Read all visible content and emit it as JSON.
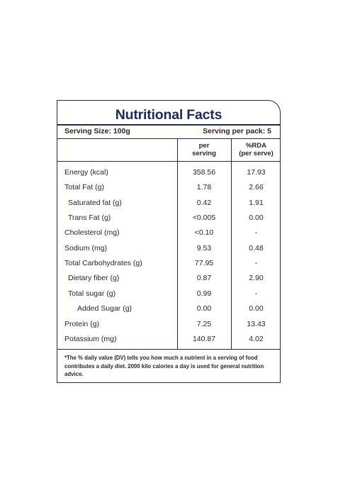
{
  "title": "Nutritional Facts",
  "serving_size": "Serving Size: 100g",
  "serving_per_pack": "Serving per pack: 5",
  "columns": {
    "per_serving_line1": "per",
    "per_serving_line2": "serving",
    "rda_line1": "%RDA",
    "rda_line2": "(per serve)"
  },
  "rows": [
    {
      "name": "Energy (kcal)",
      "per_serving": "358.56",
      "rda": "17.93"
    },
    {
      "name": "Total Fat (g)",
      "per_serving": "1.78",
      "rda": "2.66"
    },
    {
      "name": "Saturated fat (g)",
      "per_serving": "0.42",
      "rda": "1.91"
    },
    {
      "name": "Trans Fat (g)",
      "per_serving": "<0.005",
      "rda": "0.00"
    },
    {
      "name": "Cholesterol (mg)",
      "per_serving": "<0.10",
      "rda": "-"
    },
    {
      "name": "Sodium (mg)",
      "per_serving": "9.53",
      "rda": "0.48"
    },
    {
      "name": "Total Carbohydrates  (g)",
      "per_serving": "77.95",
      "rda": "-"
    },
    {
      "name": "Dietary fiber (g)",
      "per_serving": "0.87",
      "rda": "2.90"
    },
    {
      "name": "Total sugar (g)",
      "per_serving": "0.99",
      "rda": "-"
    },
    {
      "name": "Added Sugar (g)",
      "per_serving": "0.00",
      "rda": "0.00"
    },
    {
      "name": "Protein (g)",
      "per_serving": "7.25",
      "rda": "13.43"
    },
    {
      "name": "Potassium (mg)",
      "per_serving": "140.87",
      "rda": "4.02"
    }
  ],
  "footnote": "*The % daily value (DV) tells you how much a nutrient in a serving of food contributes a daily diet. 2000 kilo calories a day is used for general nutrition advice.",
  "colors": {
    "border": "#1f2a5c",
    "title": "#1f2a5c",
    "text": "#2e2326"
  }
}
